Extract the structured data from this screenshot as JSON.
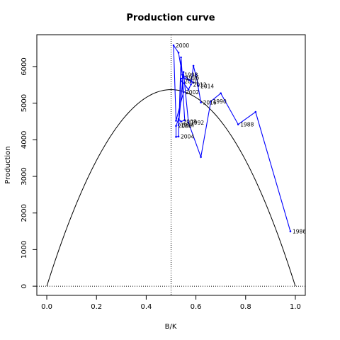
{
  "chart_data": {
    "type": "line",
    "title": "Production curve",
    "xlabel": "B/K",
    "ylabel": "Production",
    "xlim": [
      -0.04,
      1.04
    ],
    "ylim": [
      -250,
      6870
    ],
    "x_ticks": [
      0,
      0.2,
      0.4,
      0.6,
      0.8,
      1.0
    ],
    "x_tick_labels": [
      "0.0",
      "0.2",
      "0.4",
      "0.6",
      "0.8",
      "1.0"
    ],
    "y_ticks": [
      0,
      1000,
      2000,
      3000,
      4000,
      5000,
      6000
    ],
    "y_tick_labels": [
      "0",
      "1000",
      "2000",
      "3000",
      "4000",
      "5000",
      "6000"
    ],
    "grid": false,
    "reference_lines": {
      "vertical_x": 0.5,
      "horizontal_y": 0
    },
    "production_curve": {
      "color": "#000000",
      "x_range": [
        0,
        1
      ],
      "peak_x": 0.5,
      "peak_y": 5370
    },
    "series": [
      {
        "color": "#0000ff",
        "points": [
          {
            "label": "1986",
            "x": 0.98,
            "y": 1500
          },
          {
            "label": "",
            "x": 0.84,
            "y": 4760
          },
          {
            "label": "1988",
            "x": 0.77,
            "y": 4420
          },
          {
            "label": "",
            "x": 0.7,
            "y": 5270
          },
          {
            "label": "1990",
            "x": 0.66,
            "y": 5050
          },
          {
            "label": "",
            "x": 0.62,
            "y": 3530
          },
          {
            "label": "1992",
            "x": 0.57,
            "y": 4470
          },
          {
            "label": "",
            "x": 0.55,
            "y": 5850
          },
          {
            "label": "1994",
            "x": 0.53,
            "y": 4400
          },
          {
            "label": "",
            "x": 0.54,
            "y": 5670
          },
          {
            "label": "1996",
            "x": 0.55,
            "y": 5700
          },
          {
            "label": "",
            "x": 0.59,
            "y": 5560
          },
          {
            "label": "1998",
            "x": 0.545,
            "y": 5780
          },
          {
            "label": "",
            "x": 0.53,
            "y": 6380
          },
          {
            "label": "2000",
            "x": 0.51,
            "y": 6580
          },
          {
            "label": "",
            "x": 0.52,
            "y": 4520
          },
          {
            "label": "2002",
            "x": 0.55,
            "y": 5300
          },
          {
            "label": "",
            "x": 0.54,
            "y": 6250
          },
          {
            "label": "2004",
            "x": 0.53,
            "y": 4090
          },
          {
            "label": "",
            "x": 0.52,
            "y": 4080
          },
          {
            "label": "2006",
            "x": 0.52,
            "y": 4380
          },
          {
            "label": "",
            "x": 0.53,
            "y": 4570
          },
          {
            "label": "2008",
            "x": 0.54,
            "y": 4500
          },
          {
            "label": "",
            "x": 0.555,
            "y": 4530
          },
          {
            "label": "2010",
            "x": 0.545,
            "y": 5600
          },
          {
            "label": "",
            "x": 0.57,
            "y": 5370
          },
          {
            "label": "2012",
            "x": 0.58,
            "y": 5510
          },
          {
            "label": "",
            "x": 0.59,
            "y": 6020
          },
          {
            "label": "2014",
            "x": 0.61,
            "y": 5470
          },
          {
            "label": "",
            "x": 0.6,
            "y": 5790
          },
          {
            "label": "2016",
            "x": 0.62,
            "y": 5020
          }
        ]
      }
    ]
  }
}
